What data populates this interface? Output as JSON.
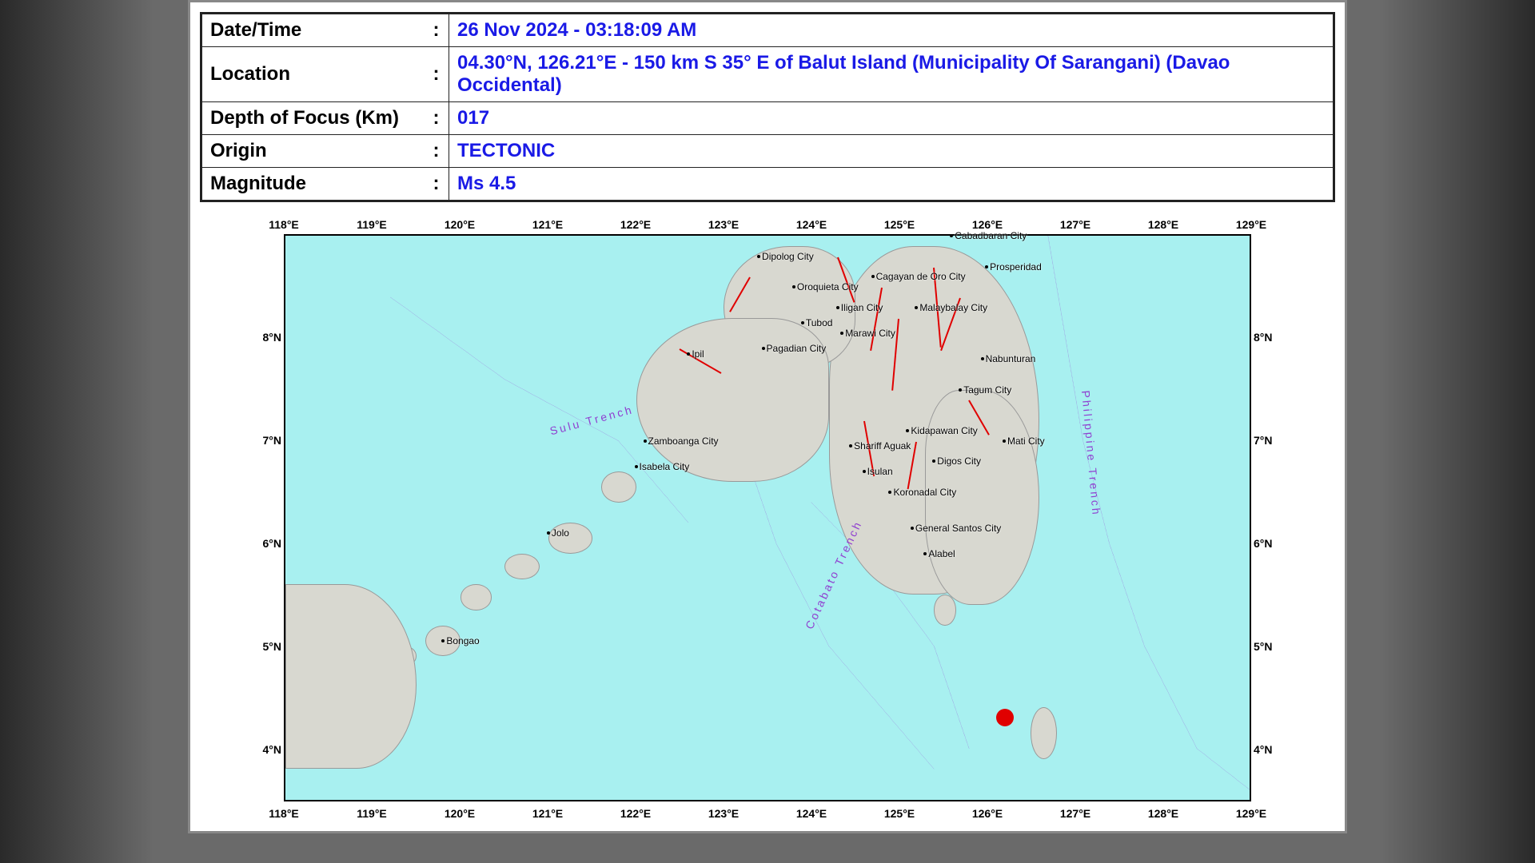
{
  "info": {
    "rows": [
      {
        "label": "Date/Time",
        "value": "26 Nov 2024 - 03:18:09 AM"
      },
      {
        "label": "Location",
        "value": "04.30°N, 126.21°E - 150 km S 35° E of Balut Island (Municipality Of Sarangani) (Davao Occidental)"
      },
      {
        "label": "Depth of Focus (Km)",
        "value": "017"
      },
      {
        "label": "Origin",
        "value": "TECTONIC"
      },
      {
        "label": "Magnitude",
        "value": "Ms 4.5"
      }
    ]
  },
  "map": {
    "lon_range": [
      118,
      129
    ],
    "lat_range": [
      3.5,
      9
    ],
    "lon_ticks": [
      "118°E",
      "119°E",
      "120°E",
      "121°E",
      "122°E",
      "123°E",
      "124°E",
      "125°E",
      "126°E",
      "127°E",
      "128°E",
      "129°E"
    ],
    "lat_ticks": [
      "4°N",
      "5°N",
      "6°N",
      "7°N",
      "8°N"
    ],
    "water_color": "#a8f0f0",
    "land_color": "#d8d8d0",
    "trench_color": "#9040d0",
    "fault_color": "#e00000",
    "epicenter_color": "#e00000",
    "epicenter": {
      "lon": 126.21,
      "lat": 4.3
    },
    "trenches": [
      {
        "name": "Sulu Trench",
        "label_lon": 121.0,
        "label_lat": 7.15,
        "rotate": -15
      },
      {
        "name": "Cotabato Trench",
        "label_lon": 123.9,
        "label_lat": 5.2,
        "rotate": -65
      },
      {
        "name": "Philippine Trench",
        "label_lon": 127.2,
        "label_lat": 7.5,
        "rotate": 85
      }
    ],
    "cities": [
      {
        "name": "Cabadbaran City",
        "lon": 125.6,
        "lat": 9.0
      },
      {
        "name": "Prosperidad",
        "lon": 126.0,
        "lat": 8.7
      },
      {
        "name": "Dipolog City",
        "lon": 123.4,
        "lat": 8.8
      },
      {
        "name": "Cagayan de Oro City",
        "lon": 124.7,
        "lat": 8.6
      },
      {
        "name": "Oroquieta City",
        "lon": 123.8,
        "lat": 8.5
      },
      {
        "name": "Iligan City",
        "lon": 124.3,
        "lat": 8.3
      },
      {
        "name": "Malaybalay City",
        "lon": 125.2,
        "lat": 8.3
      },
      {
        "name": "Tubod",
        "lon": 123.9,
        "lat": 8.15
      },
      {
        "name": "Marawi City",
        "lon": 124.35,
        "lat": 8.05
      },
      {
        "name": "Nabunturan",
        "lon": 125.95,
        "lat": 7.8
      },
      {
        "name": "Pagadian City",
        "lon": 123.45,
        "lat": 7.9
      },
      {
        "name": "Tagum City",
        "lon": 125.7,
        "lat": 7.5
      },
      {
        "name": "Ipil",
        "lon": 122.6,
        "lat": 7.85
      },
      {
        "name": "Kidapawan City",
        "lon": 125.1,
        "lat": 7.1
      },
      {
        "name": "Mati City",
        "lon": 126.2,
        "lat": 7.0
      },
      {
        "name": "Zamboanga City",
        "lon": 122.1,
        "lat": 7.0
      },
      {
        "name": "Shariff Aguak",
        "lon": 124.45,
        "lat": 6.95
      },
      {
        "name": "Isabela City",
        "lon": 122.0,
        "lat": 6.75
      },
      {
        "name": "Isulan",
        "lon": 124.6,
        "lat": 6.7
      },
      {
        "name": "Digos City",
        "lon": 125.4,
        "lat": 6.8
      },
      {
        "name": "Koronadal City",
        "lon": 124.9,
        "lat": 6.5
      },
      {
        "name": "General Santos City",
        "lon": 125.15,
        "lat": 6.15
      },
      {
        "name": "Jolo",
        "lon": 121.0,
        "lat": 6.1
      },
      {
        "name": "Alabel",
        "lon": 125.3,
        "lat": 5.9
      },
      {
        "name": "Bongao",
        "lon": 119.8,
        "lat": 5.05
      }
    ]
  }
}
